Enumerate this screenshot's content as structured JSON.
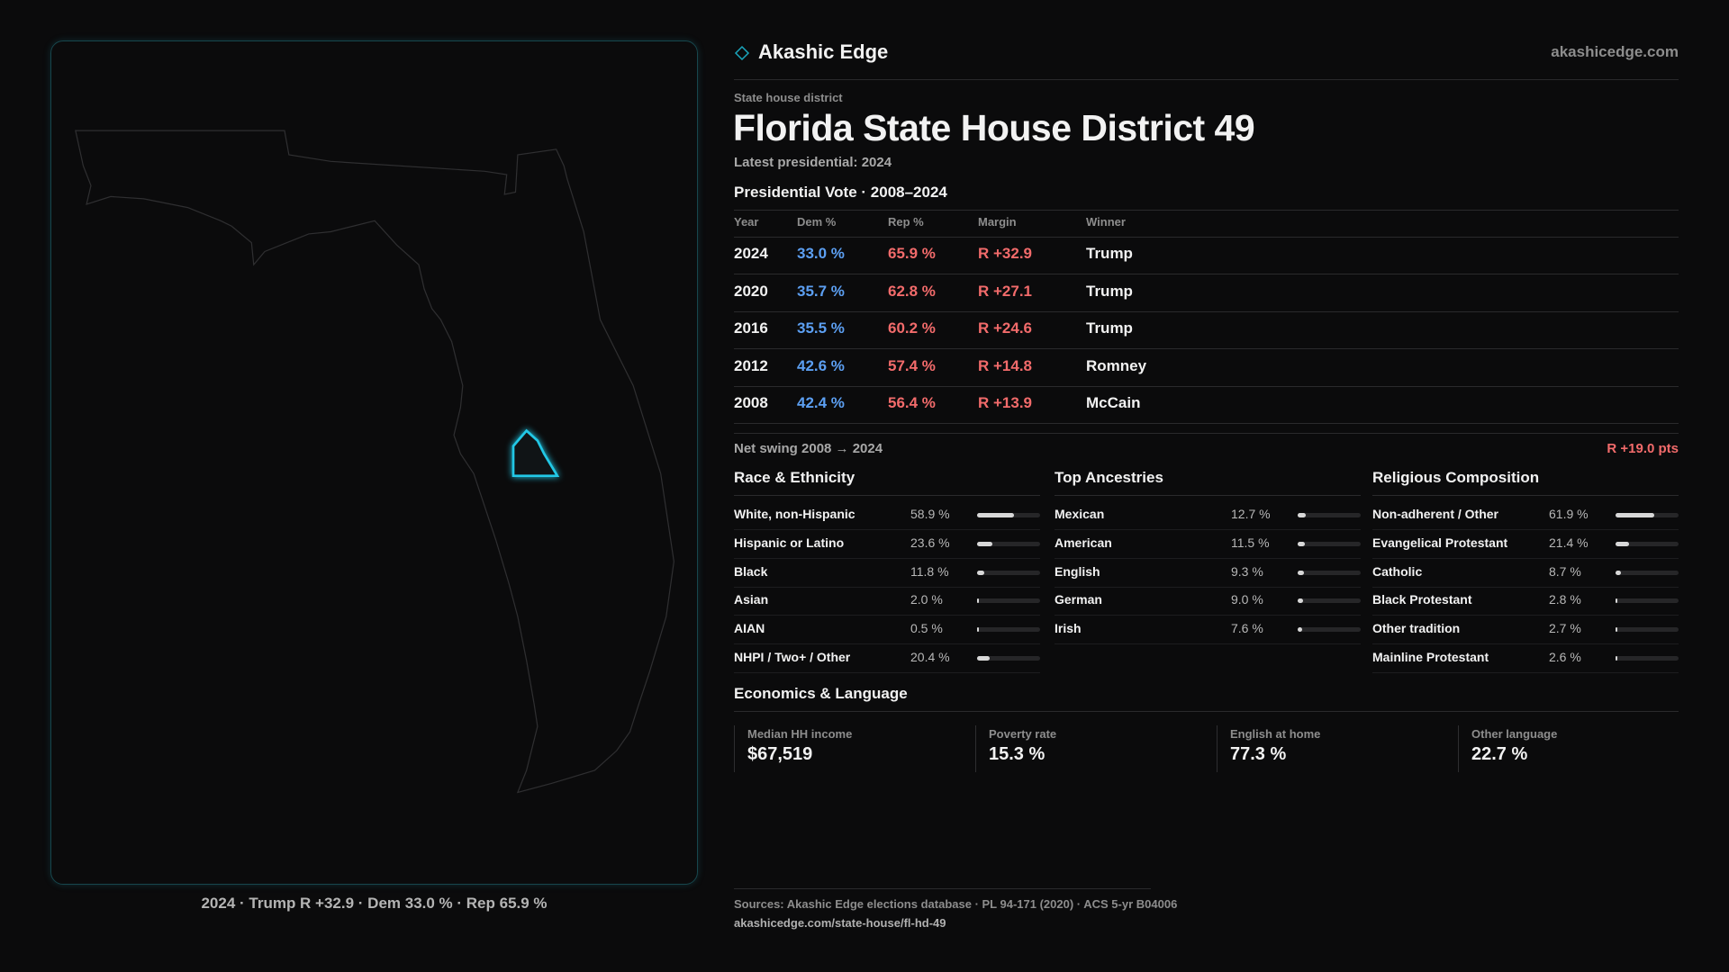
{
  "header": {
    "brand": "Akashic Edge",
    "site": "akashicedge.com"
  },
  "district": {
    "kicker": "State house district",
    "title": "Florida State House District 49",
    "latest": "Latest presidential: 2024"
  },
  "map": {
    "caption": "2024 · Trump R +32.9 · Dem 33.0 % · Rep 65.9 %"
  },
  "presidential": {
    "title": "Presidential Vote · 2008–2024",
    "columns": [
      "Year",
      "Dem %",
      "Rep %",
      "Margin",
      "Winner"
    ],
    "rows": [
      [
        "2024",
        "33.0 %",
        "65.9 %",
        "R +32.9",
        "Trump"
      ],
      [
        "2020",
        "35.7 %",
        "62.8 %",
        "R +27.1",
        "Trump"
      ],
      [
        "2016",
        "35.5 %",
        "60.2 %",
        "R +24.6",
        "Trump"
      ],
      [
        "2012",
        "42.6 %",
        "57.4 %",
        "R +14.8",
        "Romney"
      ],
      [
        "2008",
        "42.4 %",
        "56.4 %",
        "R +13.9",
        "McCain"
      ]
    ]
  },
  "swing": {
    "label": "Net swing 2008 → 2024",
    "value": "R +19.0 pts"
  },
  "race": {
    "title": "Race & Ethnicity",
    "rows": [
      {
        "label": "White, non-Hispanic",
        "value": 58.9,
        "value_label": "58.9 %"
      },
      {
        "label": "Hispanic or Latino",
        "value": 23.6,
        "value_label": "23.6 %"
      },
      {
        "label": "Black",
        "value": 11.8,
        "value_label": "11.8 %"
      },
      {
        "label": "Asian",
        "value": 2.0,
        "value_label": "2.0 %"
      },
      {
        "label": "AIAN",
        "value": 0.5,
        "value_label": "0.5 %"
      },
      {
        "label": "NHPI / Two+ / Other",
        "value": 20.4,
        "value_label": "20.4 %"
      }
    ]
  },
  "ancestries": {
    "title": "Top Ancestries",
    "rows": [
      {
        "label": "Mexican",
        "value": 12.7,
        "value_label": "12.7 %"
      },
      {
        "label": "American",
        "value": 11.5,
        "value_label": "11.5 %"
      },
      {
        "label": "English",
        "value": 9.3,
        "value_label": "9.3 %"
      },
      {
        "label": "German",
        "value": 9.0,
        "value_label": "9.0 %"
      },
      {
        "label": "Irish",
        "value": 7.6,
        "value_label": "7.6 %"
      }
    ]
  },
  "religion": {
    "title": "Religious Composition",
    "rows": [
      {
        "label": "Non-adherent / Other",
        "value": 61.9,
        "value_label": "61.9 %"
      },
      {
        "label": "Evangelical Protestant",
        "value": 21.4,
        "value_label": "21.4 %"
      },
      {
        "label": "Catholic",
        "value": 8.7,
        "value_label": "8.7 %"
      },
      {
        "label": "Black Protestant",
        "value": 2.8,
        "value_label": "2.8 %"
      },
      {
        "label": "Other tradition",
        "value": 2.7,
        "value_label": "2.7 %"
      },
      {
        "label": "Mainline Protestant",
        "value": 2.6,
        "value_label": "2.6 %"
      }
    ]
  },
  "economics": {
    "title": "Economics & Language",
    "items": [
      {
        "label": "Median HH income",
        "value": "$67,519"
      },
      {
        "label": "Poverty rate",
        "value": "15.3 %"
      },
      {
        "label": "English at home",
        "value": "77.3 %"
      },
      {
        "label": "Other language",
        "value": "22.7 %"
      }
    ]
  },
  "sources": {
    "text": "Sources: Akashic Edge elections database · PL 94-171 (2020) · ACS 5-yr B04006",
    "url": "akashicedge.com/state-house/fl-hd-49"
  }
}
